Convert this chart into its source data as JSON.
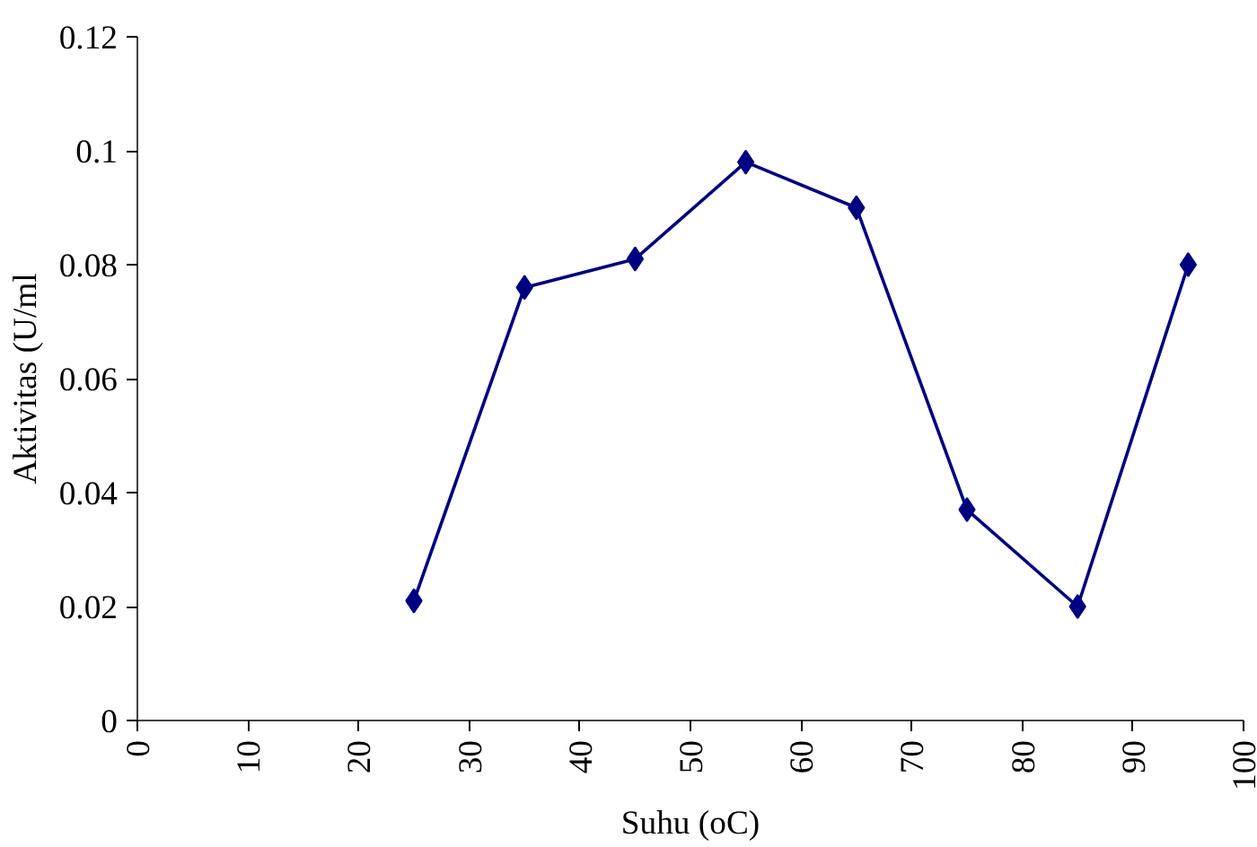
{
  "chart_data": {
    "type": "line",
    "xlabel": "Suhu (oC)",
    "ylabel": "Aktivitas (U/ml",
    "x": [
      25,
      35,
      45,
      55,
      65,
      75,
      85,
      95
    ],
    "series": [
      {
        "color": "#000080",
        "values": [
          0.021,
          0.076,
          0.081,
          0.098,
          0.09,
          0.037,
          0.02,
          0.08
        ]
      }
    ],
    "xlim": [
      0,
      100
    ],
    "xticks": [
      0,
      10,
      20,
      30,
      40,
      50,
      60,
      70,
      80,
      90,
      100
    ],
    "ylim": [
      0,
      0.12
    ],
    "yticks": [
      0,
      0.02,
      0.04,
      0.06,
      0.08,
      0.1,
      0.12
    ],
    "marker": "diamond",
    "line_style": "solid"
  }
}
